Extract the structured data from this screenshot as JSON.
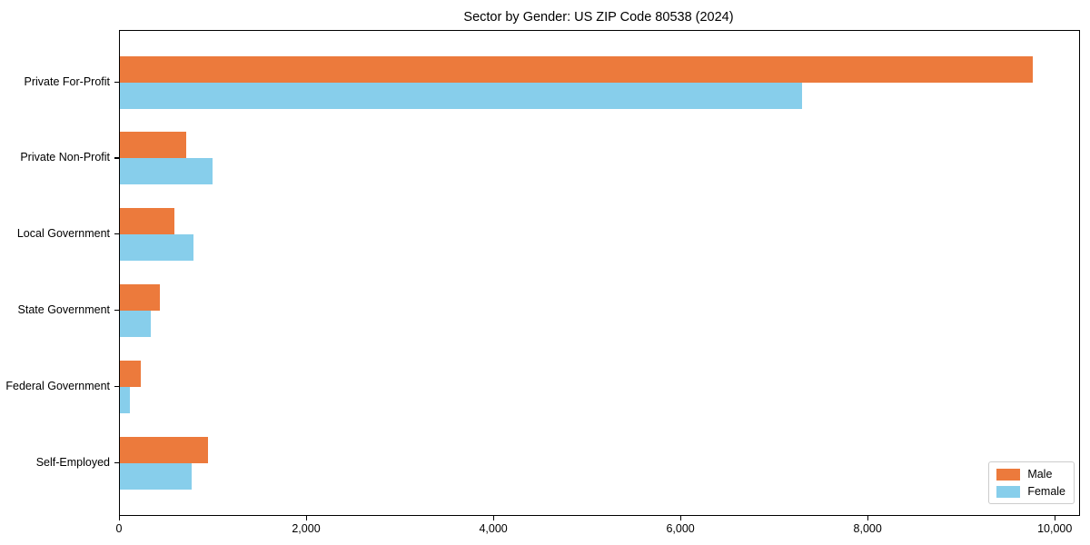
{
  "title": "Sector by Gender: US ZIP Code 80538 (2024)",
  "chart_data": {
    "type": "bar",
    "orientation": "horizontal",
    "title": "Sector by Gender: US ZIP Code 80538 (2024)",
    "categories": [
      "Private For-Profit",
      "Private Non-Profit",
      "Local Government",
      "State Government",
      "Federal Government",
      "Self-Employed"
    ],
    "series": [
      {
        "name": "Male",
        "color": "#EC7A3C",
        "values": [
          9750,
          710,
          580,
          430,
          220,
          940
        ]
      },
      {
        "name": "Female",
        "color": "#87CEEB",
        "values": [
          7290,
          990,
          790,
          330,
          110,
          770
        ]
      }
    ],
    "xlabel": "",
    "ylabel": "",
    "xlim": [
      0,
      10250
    ],
    "xticks": [
      0,
      2000,
      4000,
      6000,
      8000,
      10000
    ],
    "xtick_labels": [
      "0",
      "2,000",
      "4,000",
      "6,000",
      "8,000",
      "10,000"
    ],
    "grid": false,
    "legend_position": "lower right",
    "plot_border_color": "#000000",
    "background_color": "#ffffff"
  }
}
